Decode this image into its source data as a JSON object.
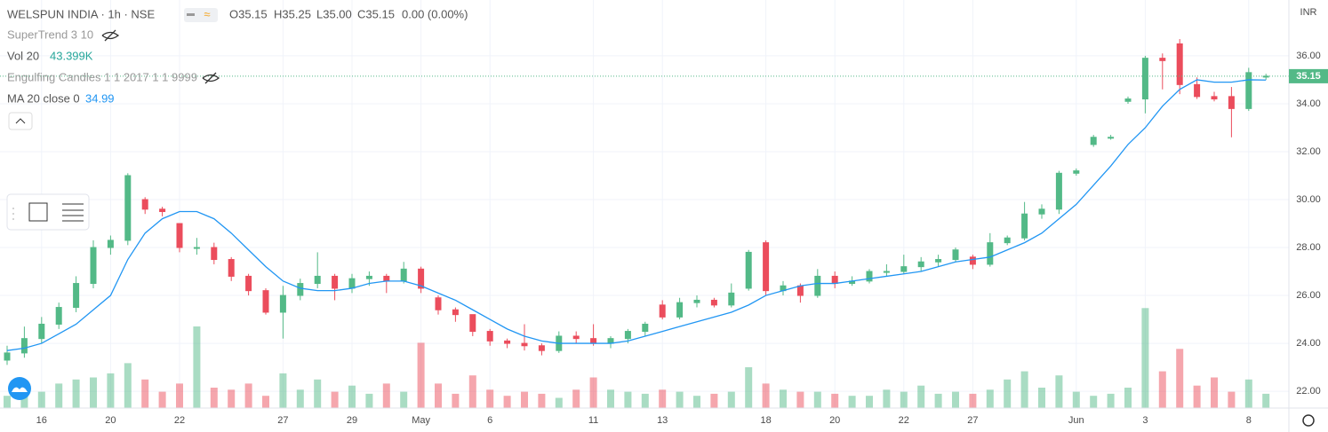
{
  "chart_data": {
    "type": "candlestick",
    "header": {
      "title": "WELSPUN INDIA · 1h · NSE",
      "open": "O35.15",
      "high": "H35.25",
      "low": "L35.00",
      "close": "C35.15",
      "change": "0.00 (0.00%)"
    },
    "legend": [
      {
        "name": "SuperTrend 3 10"
      },
      {
        "name": "Vol 20",
        "value": "43.399K",
        "color": "#26a69a"
      },
      {
        "name": "Engulfing Candles 1 1 2017 1 1 9999"
      },
      {
        "name": "MA 20 close 0",
        "value": "34.99",
        "color": "#2196f3"
      }
    ],
    "currency": "INR",
    "categories": [
      null,
      null,
      "16",
      null,
      null,
      null,
      "20",
      null,
      null,
      null,
      "22",
      null,
      null,
      null,
      null,
      null,
      "27",
      null,
      null,
      null,
      "29",
      null,
      null,
      null,
      "May",
      null,
      null,
      null,
      "6",
      null,
      null,
      null,
      null,
      null,
      "11",
      null,
      null,
      null,
      "13",
      null,
      null,
      null,
      null,
      null,
      "18",
      null,
      null,
      null,
      "20",
      null,
      null,
      null,
      "22",
      null,
      null,
      null,
      "27",
      null,
      null,
      null,
      null,
      null,
      "Jun",
      null,
      null,
      null,
      "3",
      null,
      null,
      null,
      null,
      null,
      "8",
      null
    ],
    "candles": [
      [
        23.3,
        23.9,
        23.1,
        23.6
      ],
      [
        23.6,
        24.7,
        23.4,
        24.2
      ],
      [
        24.2,
        25.1,
        24.0,
        24.8
      ],
      [
        24.8,
        25.7,
        24.6,
        25.5
      ],
      [
        25.5,
        26.8,
        25.3,
        26.5
      ],
      [
        26.5,
        28.3,
        26.3,
        28.0
      ],
      [
        28.0,
        28.5,
        27.7,
        28.3
      ],
      [
        28.3,
        31.1,
        28.1,
        31.0
      ],
      [
        30.0,
        30.1,
        29.4,
        29.6
      ],
      [
        29.6,
        29.7,
        29.3,
        29.5
      ],
      [
        29.0,
        29.0,
        27.8,
        28.0
      ],
      [
        28.0,
        28.4,
        27.7,
        28.0
      ],
      [
        28.0,
        28.2,
        27.3,
        27.5
      ],
      [
        27.5,
        27.6,
        26.6,
        26.8
      ],
      [
        26.8,
        26.9,
        26.0,
        26.2
      ],
      [
        26.2,
        26.3,
        25.2,
        25.3
      ],
      [
        25.3,
        26.4,
        24.2,
        26.0
      ],
      [
        26.0,
        26.7,
        25.8,
        26.5
      ],
      [
        26.5,
        27.8,
        26.3,
        26.8
      ],
      [
        26.8,
        26.9,
        25.8,
        26.3
      ],
      [
        26.3,
        26.9,
        26.1,
        26.7
      ],
      [
        26.7,
        27.0,
        26.4,
        26.8
      ],
      [
        26.8,
        26.9,
        26.1,
        26.6
      ],
      [
        26.6,
        27.4,
        26.5,
        27.1
      ],
      [
        27.1,
        27.2,
        26.1,
        26.3
      ],
      [
        25.9,
        26.0,
        25.2,
        25.4
      ],
      [
        25.4,
        25.5,
        24.9,
        25.2
      ],
      [
        25.2,
        25.2,
        24.3,
        24.5
      ],
      [
        24.5,
        24.6,
        23.9,
        24.1
      ],
      [
        24.1,
        24.2,
        23.8,
        24.0
      ],
      [
        24.0,
        24.8,
        23.7,
        23.9
      ],
      [
        23.9,
        24.0,
        23.5,
        23.7
      ],
      [
        23.7,
        24.5,
        23.6,
        24.3
      ],
      [
        24.3,
        24.5,
        24.0,
        24.2
      ],
      [
        24.2,
        24.8,
        23.9,
        24.0
      ],
      [
        24.0,
        24.3,
        23.8,
        24.2
      ],
      [
        24.2,
        24.6,
        24.0,
        24.5
      ],
      [
        24.5,
        24.9,
        24.3,
        24.8
      ],
      [
        25.6,
        25.8,
        25.0,
        25.1
      ],
      [
        25.1,
        25.9,
        25.0,
        25.7
      ],
      [
        25.7,
        26.0,
        25.5,
        25.8
      ],
      [
        25.8,
        25.9,
        25.5,
        25.6
      ],
      [
        25.6,
        26.5,
        25.5,
        26.1
      ],
      [
        26.3,
        27.9,
        26.2,
        27.8
      ],
      [
        28.2,
        28.3,
        26.0,
        26.2
      ],
      [
        26.2,
        26.6,
        26.0,
        26.4
      ],
      [
        26.4,
        26.5,
        25.7,
        26.0
      ],
      [
        26.0,
        27.1,
        25.9,
        26.8
      ],
      [
        26.8,
        27.0,
        26.3,
        26.5
      ],
      [
        26.5,
        26.8,
        26.4,
        26.6
      ],
      [
        26.6,
        27.1,
        26.5,
        27.0
      ],
      [
        27.0,
        27.3,
        26.8,
        27.0
      ],
      [
        27.0,
        27.7,
        26.9,
        27.2
      ],
      [
        27.2,
        27.6,
        27.0,
        27.4
      ],
      [
        27.4,
        27.7,
        27.2,
        27.5
      ],
      [
        27.5,
        28.0,
        27.4,
        27.9
      ],
      [
        27.6,
        27.7,
        27.1,
        27.3
      ],
      [
        27.3,
        28.6,
        27.2,
        28.2
      ],
      [
        28.2,
        28.5,
        28.1,
        28.4
      ],
      [
        28.4,
        29.9,
        28.3,
        29.4
      ],
      [
        29.4,
        29.8,
        29.2,
        29.6
      ],
      [
        29.6,
        31.2,
        29.4,
        31.1
      ],
      [
        31.1,
        31.3,
        31.0,
        31.2
      ],
      [
        32.3,
        32.7,
        32.2,
        32.6
      ],
      [
        32.6,
        32.7,
        32.5,
        32.6
      ],
      [
        34.1,
        34.3,
        34.0,
        34.2
      ],
      [
        34.2,
        36.0,
        33.6,
        35.9
      ],
      [
        35.9,
        36.1,
        34.6,
        35.8
      ],
      [
        36.5,
        36.7,
        34.4,
        34.8
      ],
      [
        34.8,
        35.1,
        34.2,
        34.3
      ],
      [
        34.3,
        34.5,
        34.1,
        34.2
      ],
      [
        34.3,
        34.7,
        32.6,
        33.8
      ],
      [
        33.8,
        35.5,
        33.7,
        35.3
      ],
      [
        35.15,
        35.25,
        35.0,
        35.15
      ]
    ],
    "volumes": [
      30,
      35,
      40,
      60,
      70,
      75,
      85,
      110,
      70,
      40,
      60,
      200,
      50,
      45,
      60,
      30,
      85,
      45,
      70,
      40,
      55,
      35,
      60,
      40,
      160,
      60,
      35,
      80,
      45,
      30,
      40,
      35,
      25,
      45,
      75,
      45,
      40,
      35,
      45,
      40,
      30,
      35,
      40,
      100,
      60,
      45,
      40,
      40,
      35,
      30,
      30,
      45,
      40,
      55,
      35,
      40,
      35,
      45,
      70,
      90,
      50,
      80,
      40,
      30,
      35,
      50,
      245,
      90,
      145,
      55,
      75,
      40,
      70,
      35
    ],
    "volume_lim": [
      0,
      500
    ],
    "ma": [
      23.7,
      23.8,
      24.0,
      24.4,
      24.8,
      25.4,
      26.0,
      27.5,
      28.6,
      29.2,
      29.5,
      29.5,
      29.2,
      28.6,
      27.9,
      27.2,
      26.6,
      26.3,
      26.2,
      26.2,
      26.3,
      26.5,
      26.6,
      26.6,
      26.4,
      26.1,
      25.8,
      25.4,
      25.0,
      24.6,
      24.3,
      24.1,
      24.0,
      24.0,
      24.0,
      24.0,
      24.1,
      24.3,
      24.5,
      24.7,
      24.9,
      25.1,
      25.3,
      25.6,
      26.0,
      26.2,
      26.4,
      26.5,
      26.5,
      26.6,
      26.7,
      26.8,
      26.9,
      27.0,
      27.2,
      27.4,
      27.5,
      27.6,
      27.9,
      28.2,
      28.6,
      29.2,
      29.8,
      30.6,
      31.4,
      32.3,
      33.0,
      33.9,
      34.6,
      35.0,
      34.9,
      34.9,
      35.0,
      34.99
    ],
    "ma_color": "#2196f3",
    "up_color": "#53b987",
    "down_color": "#eb4d5c",
    "ylim": [
      21.3,
      38.33
    ],
    "yticks": [
      {
        "value": 22,
        "label": "22.00"
      },
      {
        "value": 24,
        "label": "24.00"
      },
      {
        "value": 26,
        "label": "26.00"
      },
      {
        "value": 28,
        "label": "28.00"
      },
      {
        "value": 30,
        "label": "30.00"
      },
      {
        "value": 32,
        "label": "32.00"
      },
      {
        "value": 34,
        "label": "34.00"
      },
      {
        "value": 36,
        "label": "36.00"
      }
    ],
    "grid": true
  }
}
